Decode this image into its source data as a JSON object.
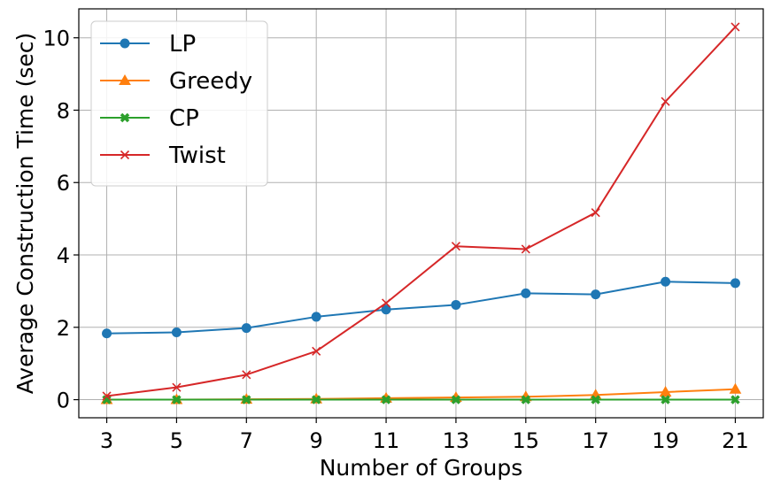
{
  "chart_data": {
    "type": "line",
    "title": "",
    "xlabel": "Number of Groups",
    "ylabel": "Average Construction Time (sec)",
    "x": [
      3,
      5,
      7,
      9,
      11,
      13,
      15,
      17,
      19,
      21
    ],
    "x_ticks": [
      "3",
      "5",
      "7",
      "9",
      "11",
      "13",
      "15",
      "17",
      "19",
      "21"
    ],
    "xlim": [
      2.2,
      21.8
    ],
    "ylim": [
      -0.5,
      10.8
    ],
    "y_ticks": [
      0,
      2,
      4,
      6,
      8,
      10
    ],
    "y_tick_labels": [
      "0",
      "2",
      "4",
      "6",
      "8",
      "10"
    ],
    "grid": true,
    "legend_position": "top-left",
    "series": [
      {
        "name": "LP",
        "color": "#1f77b4",
        "marker": "circle",
        "values": [
          1.83,
          1.86,
          1.98,
          2.29,
          2.49,
          2.62,
          2.94,
          2.91,
          3.26,
          3.22
        ]
      },
      {
        "name": "Greedy",
        "color": "#ff7f0e",
        "marker": "triangle",
        "values": [
          0.0,
          0.0,
          0.01,
          0.02,
          0.04,
          0.06,
          0.08,
          0.13,
          0.21,
          0.29
        ]
      },
      {
        "name": "CP",
        "color": "#2ca02c",
        "marker": "x-filled",
        "values": [
          0.0,
          0.0,
          0.0,
          0.0,
          0.0,
          0.0,
          0.0,
          0.0,
          0.0,
          0.0
        ]
      },
      {
        "name": "Twist",
        "color": "#d62728",
        "marker": "x",
        "values": [
          0.1,
          0.34,
          0.69,
          1.34,
          2.67,
          4.24,
          4.16,
          5.17,
          8.24,
          10.3
        ]
      }
    ]
  }
}
